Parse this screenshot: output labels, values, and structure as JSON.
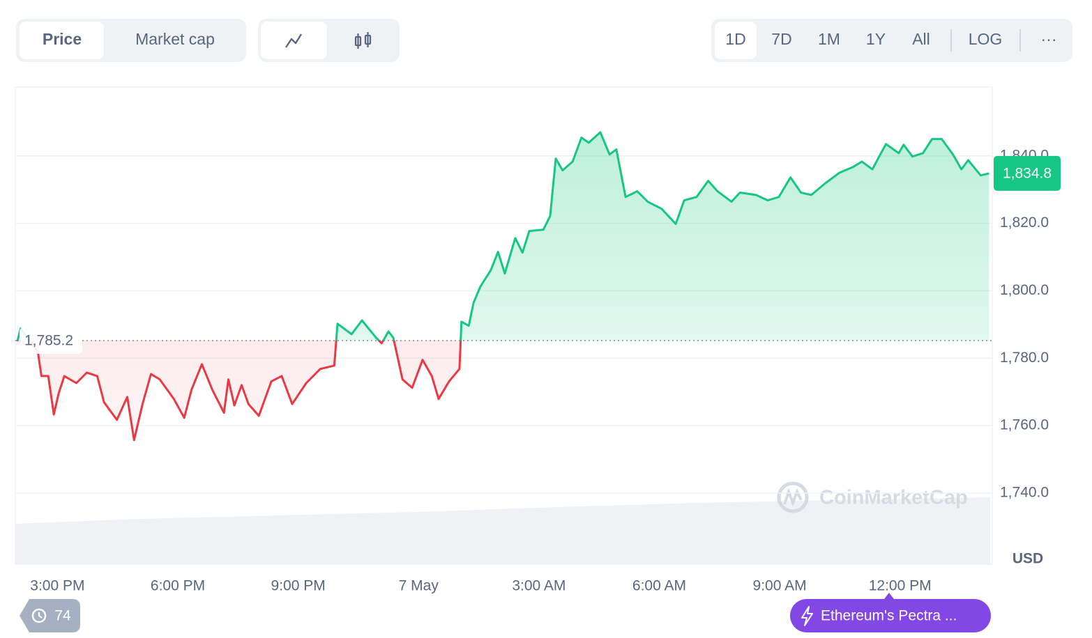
{
  "toolbar": {
    "metric_tabs": [
      "Price",
      "Market cap"
    ],
    "active_metric": 0,
    "ranges": [
      "1D",
      "7D",
      "1M",
      "1Y",
      "All"
    ],
    "active_range": 0,
    "log_label": "LOG",
    "more_label": "···"
  },
  "watermark": "CoinMarketCap",
  "history_count": 74,
  "news_pill": "Ethereum's Pectra ...",
  "chart_data": {
    "type": "line",
    "x": [
      14.0,
      14.08,
      14.51,
      14.6,
      14.77,
      14.91,
      15.03,
      15.17,
      15.47,
      15.73,
      15.99,
      16.16,
      16.48,
      16.74,
      16.91,
      17.12,
      17.33,
      17.55,
      17.9,
      18.16,
      18.34,
      18.6,
      18.86,
      19.15,
      19.26,
      19.41,
      19.59,
      19.76,
      20.02,
      20.33,
      20.59,
      20.85,
      21.2,
      21.55,
      21.9,
      21.98,
      22.33,
      22.59,
      22.94,
      23.08,
      23.25,
      23.37,
      23.6,
      23.84,
      24.1,
      24.33,
      24.5,
      24.76,
      25.02,
      25.07,
      25.25,
      25.37,
      25.54,
      25.8,
      25.98,
      26.15,
      26.41,
      26.59,
      26.76,
      27.11,
      27.28,
      27.42,
      27.59,
      27.84,
      28.06,
      28.24,
      28.53,
      28.76,
      28.93,
      29.16,
      29.45,
      29.71,
      30.06,
      30.41,
      30.62,
      30.93,
      31.22,
      31.45,
      31.8,
      32.01,
      32.41,
      32.7,
      32.98,
      33.27,
      33.53,
      33.79,
      34.14,
      34.49,
      34.83,
      35.05,
      35.31,
      35.65,
      35.97,
      36.09,
      36.31,
      36.57,
      36.8,
      37.04,
      37.32,
      37.53,
      37.7,
      38.01,
      38.22
    ],
    "values": [
      1785.0,
      1788.8,
      1782.0,
      1774.7,
      1774.7,
      1763.3,
      1769.5,
      1774.7,
      1772.6,
      1775.7,
      1774.7,
      1766.9,
      1761.7,
      1768.5,
      1755.7,
      1766.4,
      1775.3,
      1773.7,
      1767.9,
      1762.3,
      1770.6,
      1778.2,
      1770.6,
      1763.8,
      1773.7,
      1766.0,
      1772.0,
      1766.4,
      1762.9,
      1773.1,
      1774.7,
      1766.4,
      1772.6,
      1776.8,
      1777.8,
      1790.2,
      1787.1,
      1791.2,
      1786.1,
      1784.4,
      1787.9,
      1786.1,
      1773.7,
      1771.2,
      1779.5,
      1774.7,
      1767.9,
      1773.1,
      1776.8,
      1790.8,
      1789.6,
      1796.4,
      1801.2,
      1806.1,
      1811.5,
      1805.1,
      1815.6,
      1811.3,
      1817.7,
      1818.1,
      1822.2,
      1839.2,
      1835.7,
      1838.3,
      1845.4,
      1843.9,
      1847.0,
      1840.4,
      1841.9,
      1827.8,
      1829.5,
      1826.4,
      1824.3,
      1819.8,
      1826.8,
      1827.8,
      1832.6,
      1829.5,
      1826.4,
      1829.1,
      1828.4,
      1826.8,
      1827.8,
      1833.6,
      1829.1,
      1828.4,
      1831.9,
      1835.0,
      1836.7,
      1838.3,
      1836.0,
      1843.5,
      1840.8,
      1843.3,
      1839.8,
      1840.8,
      1845.0,
      1845.0,
      1840.4,
      1836.0,
      1838.7,
      1834.2,
      1834.8
    ],
    "up_color": "#16c784",
    "down_color": "#ea3943",
    "baseline": {
      "value": 1785.2,
      "label": "1,785.2"
    },
    "last_price": {
      "value": 1834.8,
      "label": "1,834.8"
    },
    "xlim": [
      13.95,
      38.3
    ],
    "xticks": [
      {
        "value": 15,
        "label": "3:00 PM"
      },
      {
        "value": 18,
        "label": "6:00 PM"
      },
      {
        "value": 21,
        "label": "9:00 PM"
      },
      {
        "value": 24,
        "label": "7 May"
      },
      {
        "value": 27,
        "label": "3:00 AM"
      },
      {
        "value": 30,
        "label": "6:00 AM"
      },
      {
        "value": 33,
        "label": "9:00 AM"
      },
      {
        "value": 36,
        "label": "12:00 PM"
      }
    ],
    "ylim": [
      1718.9,
      1860.4
    ],
    "yticks": [
      {
        "value": 1740,
        "label": "1,740.0"
      },
      {
        "value": 1760,
        "label": "1,760.0"
      },
      {
        "value": 1780,
        "label": "1,780.0"
      },
      {
        "value": 1800,
        "label": "1,800.0"
      },
      {
        "value": 1820,
        "label": "1,820.0"
      },
      {
        "value": 1840,
        "label": "1,840.0"
      }
    ],
    "y_unit": "USD",
    "grid": true
  }
}
